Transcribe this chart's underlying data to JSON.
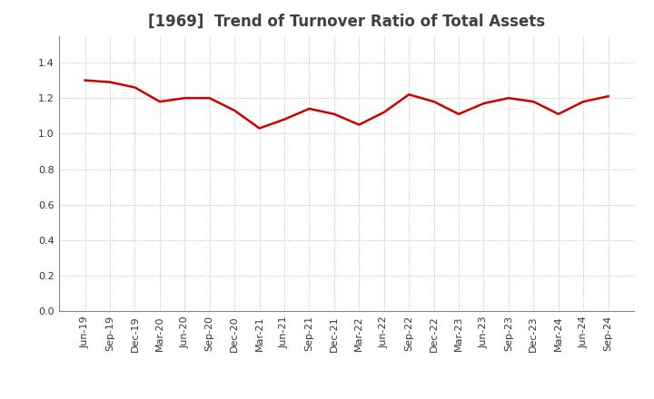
{
  "title": "[1969]  Trend of Turnover Ratio of Total Assets",
  "x_labels": [
    "Jun-19",
    "Sep-19",
    "Dec-19",
    "Mar-20",
    "Jun-20",
    "Sep-20",
    "Dec-20",
    "Mar-21",
    "Jun-21",
    "Sep-21",
    "Dec-21",
    "Mar-22",
    "Jun-22",
    "Sep-22",
    "Dec-22",
    "Mar-23",
    "Jun-23",
    "Sep-23",
    "Dec-23",
    "Mar-24",
    "Jun-24",
    "Sep-24"
  ],
  "values": [
    1.3,
    1.29,
    1.26,
    1.18,
    1.2,
    1.2,
    1.13,
    1.03,
    1.08,
    1.14,
    1.11,
    1.05,
    1.12,
    1.22,
    1.18,
    1.11,
    1.17,
    1.2,
    1.18,
    1.11,
    1.18,
    1.21
  ],
  "line_color": "#cc0000",
  "line_width": 1.8,
  "ylim": [
    0.0,
    1.55
  ],
  "yticks": [
    0.0,
    0.2,
    0.4,
    0.6,
    0.8,
    1.0,
    1.2,
    1.4
  ],
  "grid_color": "#aaaaaa",
  "bg_color": "#ffffff",
  "title_fontsize": 12,
  "tick_fontsize": 8,
  "title_color": "#404040"
}
